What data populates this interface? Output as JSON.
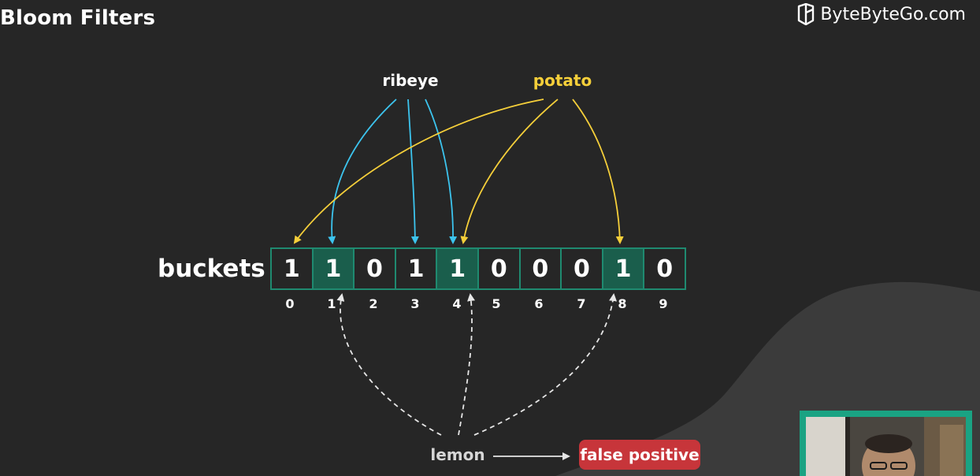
{
  "slide": {
    "title": "Bloom Filters"
  },
  "brand": {
    "name": "ByteByteGo.com",
    "icon": "bytebytego-logo-icon"
  },
  "words": {
    "ribeye": "ribeye",
    "potato": "potato",
    "lemon": "lemon"
  },
  "buckets": {
    "label": "buckets",
    "cells": [
      {
        "value": "1",
        "index": "0",
        "highlighted": false
      },
      {
        "value": "1",
        "index": "1",
        "highlighted": true
      },
      {
        "value": "0",
        "index": "2",
        "highlighted": false
      },
      {
        "value": "1",
        "index": "3",
        "highlighted": false
      },
      {
        "value": "1",
        "index": "4",
        "highlighted": true
      },
      {
        "value": "0",
        "index": "5",
        "highlighted": false
      },
      {
        "value": "0",
        "index": "6",
        "highlighted": false
      },
      {
        "value": "0",
        "index": "7",
        "highlighted": false
      },
      {
        "value": "1",
        "index": "8",
        "highlighted": true
      },
      {
        "value": "0",
        "index": "9",
        "highlighted": false
      }
    ]
  },
  "result": {
    "label": "false positive"
  },
  "colors": {
    "background": "#262626",
    "bucket_border": "#1f8a70",
    "bucket_highlight": "#1a5e4c",
    "ribeye_arrow": "#3cc4ee",
    "potato_arrow": "#f5cf3a",
    "lemon_arrow": "#e6e6e6",
    "badge": "#c7353a"
  },
  "mappings": {
    "ribeye": [
      "1",
      "3",
      "4"
    ],
    "potato": [
      "0",
      "4",
      "8"
    ],
    "lemon": [
      "1",
      "4",
      "8"
    ]
  }
}
